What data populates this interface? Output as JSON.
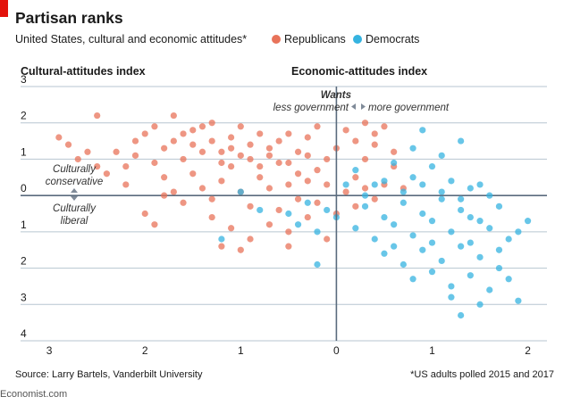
{
  "title": "Partisan ranks",
  "subtitle": "United States, cultural and economic attitudes*",
  "legend": [
    {
      "name": "Republicans",
      "color": "#e8735a"
    },
    {
      "name": "Democrats",
      "color": "#35b3e0"
    }
  ],
  "source": "Source: Larry Bartels, Vanderbilt University",
  "footnote": "*US adults polled 2015 and 2017",
  "brand": "Economist.com",
  "annotations": {
    "wants": "Wants",
    "less_gov": "less government",
    "more_gov": "more government",
    "cult_cons_1": "Culturally",
    "cult_cons_2": "conservative",
    "cult_lib_1": "Culturally",
    "cult_lib_2": "liberal"
  },
  "chart_data": {
    "type": "scatter",
    "xlabel": "Economic-attitudes index",
    "ylabel": "Cultural-attitudes index",
    "xlim": [
      -3.3,
      2.2
    ],
    "ylim": [
      -4,
      3
    ],
    "x_ticks": [
      -3,
      -2,
      -1,
      0,
      1,
      2
    ],
    "x_tick_labels": [
      "3",
      "2",
      "1",
      "0",
      "1",
      "2"
    ],
    "y_ticks": [
      3,
      2,
      1,
      0,
      -1,
      -2,
      -3,
      -4
    ],
    "y_tick_labels": [
      "3",
      "2",
      "1",
      "0",
      "1",
      "2",
      "3",
      "4"
    ],
    "grid": "horizontal",
    "series": [
      {
        "name": "Republicans",
        "color": "#e8735a",
        "points": [
          [
            -2.5,
            2.2
          ],
          [
            -2.9,
            1.6
          ],
          [
            -2.8,
            1.4
          ],
          [
            -2.7,
            1.0
          ],
          [
            -2.5,
            0.8
          ],
          [
            -2.3,
            1.2
          ],
          [
            -2.2,
            0.3
          ],
          [
            -2.1,
            1.5
          ],
          [
            -2.0,
            1.7
          ],
          [
            -1.9,
            1.9
          ],
          [
            -1.8,
            1.3
          ],
          [
            -1.7,
            2.2
          ],
          [
            -1.6,
            1.7
          ],
          [
            -1.5,
            1.4
          ],
          [
            -1.4,
            1.9
          ],
          [
            -1.3,
            2.0
          ],
          [
            -1.2,
            1.2
          ],
          [
            -1.1,
            1.6
          ],
          [
            -1.0,
            1.9
          ],
          [
            -0.9,
            1.4
          ],
          [
            -0.8,
            1.7
          ],
          [
            -0.7,
            1.1
          ],
          [
            -0.6,
            1.5
          ],
          [
            -0.5,
            0.9
          ],
          [
            -0.4,
            1.2
          ],
          [
            -0.3,
            1.6
          ],
          [
            -0.2,
            0.7
          ],
          [
            -0.1,
            1.0
          ],
          [
            0.0,
            1.3
          ],
          [
            0.1,
            1.8
          ],
          [
            0.2,
            0.5
          ],
          [
            0.3,
            1.0
          ],
          [
            0.4,
            1.4
          ],
          [
            0.5,
            0.3
          ],
          [
            0.6,
            0.8
          ],
          [
            0.7,
            0.2
          ],
          [
            0.3,
            2.0
          ],
          [
            -0.2,
            1.9
          ],
          [
            -1.9,
            0.9
          ],
          [
            -1.8,
            0.5
          ],
          [
            -1.7,
            0.1
          ],
          [
            -1.6,
            -0.2
          ],
          [
            -1.5,
            0.6
          ],
          [
            -1.4,
            0.2
          ],
          [
            -1.3,
            -0.1
          ],
          [
            -1.2,
            0.4
          ],
          [
            -1.1,
            0.8
          ],
          [
            -1.0,
            0.1
          ],
          [
            -0.9,
            -0.3
          ],
          [
            -0.8,
            0.5
          ],
          [
            -0.7,
            0.2
          ],
          [
            -0.6,
            -0.4
          ],
          [
            -0.5,
            0.3
          ],
          [
            -0.4,
            -0.1
          ],
          [
            -0.3,
            0.4
          ],
          [
            -0.2,
            -0.2
          ],
          [
            -0.1,
            0.3
          ],
          [
            0.0,
            -0.5
          ],
          [
            0.1,
            0.1
          ],
          [
            0.2,
            -0.3
          ],
          [
            0.3,
            0.2
          ],
          [
            0.4,
            -0.1
          ],
          [
            -2.0,
            -0.5
          ],
          [
            -1.9,
            -0.8
          ],
          [
            -1.8,
            0.0
          ],
          [
            -1.3,
            -0.6
          ],
          [
            -1.1,
            -0.9
          ],
          [
            -0.9,
            -1.2
          ],
          [
            -0.7,
            -0.8
          ],
          [
            -0.5,
            -1.0
          ],
          [
            -0.3,
            -0.6
          ],
          [
            -0.1,
            -1.2
          ],
          [
            -1.2,
            -1.4
          ],
          [
            -1.0,
            -1.5
          ],
          [
            -0.5,
            -1.4
          ],
          [
            -1.6,
            1.0
          ],
          [
            -1.4,
            1.2
          ],
          [
            -1.2,
            0.9
          ],
          [
            -1.0,
            1.1
          ],
          [
            -0.8,
            0.8
          ],
          [
            -0.6,
            0.9
          ],
          [
            -0.4,
            0.6
          ],
          [
            -2.2,
            0.8
          ],
          [
            -2.4,
            0.6
          ],
          [
            -2.6,
            1.2
          ],
          [
            -2.1,
            1.1
          ],
          [
            -1.7,
            1.5
          ],
          [
            -1.5,
            1.8
          ],
          [
            -1.3,
            1.5
          ],
          [
            -1.1,
            1.3
          ],
          [
            -0.9,
            1.0
          ],
          [
            -0.7,
            1.3
          ],
          [
            -0.5,
            1.7
          ],
          [
            -0.3,
            1.1
          ],
          [
            0.2,
            1.5
          ],
          [
            0.4,
            1.7
          ],
          [
            0.6,
            1.2
          ],
          [
            0.5,
            1.9
          ]
        ]
      },
      {
        "name": "Democrats",
        "color": "#35b3e0",
        "points": [
          [
            0.2,
            0.7
          ],
          [
            0.4,
            0.3
          ],
          [
            0.6,
            0.9
          ],
          [
            0.8,
            0.5
          ],
          [
            1.0,
            0.8
          ],
          [
            1.2,
            0.4
          ],
          [
            1.4,
            0.2
          ],
          [
            1.6,
            0.0
          ],
          [
            0.9,
            1.8
          ],
          [
            1.3,
            1.5
          ],
          [
            0.3,
            -0.3
          ],
          [
            0.5,
            -0.6
          ],
          [
            0.7,
            -0.2
          ],
          [
            0.9,
            -0.5
          ],
          [
            1.1,
            -0.1
          ],
          [
            1.3,
            -0.4
          ],
          [
            1.5,
            -0.7
          ],
          [
            1.7,
            -0.3
          ],
          [
            0.2,
            -0.9
          ],
          [
            0.4,
            -1.2
          ],
          [
            0.6,
            -0.8
          ],
          [
            0.8,
            -1.1
          ],
          [
            1.0,
            -0.7
          ],
          [
            1.2,
            -1.0
          ],
          [
            1.4,
            -1.3
          ],
          [
            1.6,
            -0.9
          ],
          [
            1.8,
            -1.2
          ],
          [
            0.5,
            -1.6
          ],
          [
            0.7,
            -1.9
          ],
          [
            0.9,
            -1.5
          ],
          [
            1.1,
            -1.8
          ],
          [
            1.3,
            -1.4
          ],
          [
            1.5,
            -1.7
          ],
          [
            1.7,
            -2.0
          ],
          [
            0.8,
            -2.3
          ],
          [
            1.0,
            -2.1
          ],
          [
            1.2,
            -2.5
          ],
          [
            1.4,
            -2.2
          ],
          [
            1.6,
            -2.6
          ],
          [
            1.8,
            -2.3
          ],
          [
            1.3,
            -3.3
          ],
          [
            1.5,
            -3.0
          ],
          [
            1.9,
            -2.9
          ],
          [
            1.2,
            -2.8
          ],
          [
            -0.1,
            -0.4
          ],
          [
            -0.3,
            -0.2
          ],
          [
            -0.5,
            -0.5
          ],
          [
            -0.2,
            -1.0
          ],
          [
            -0.4,
            -0.8
          ],
          [
            0.0,
            -0.6
          ],
          [
            -1.2,
            -1.2
          ],
          [
            -0.2,
            -1.9
          ],
          [
            -1.0,
            0.1
          ],
          [
            -0.8,
            -0.4
          ],
          [
            0.1,
            0.3
          ],
          [
            0.3,
            0.0
          ],
          [
            0.5,
            0.4
          ],
          [
            0.7,
            0.1
          ],
          [
            0.9,
            0.3
          ],
          [
            1.1,
            0.1
          ],
          [
            1.3,
            -0.1
          ],
          [
            1.5,
            0.3
          ],
          [
            1.0,
            -1.3
          ],
          [
            0.6,
            -1.4
          ],
          [
            1.4,
            -0.6
          ],
          [
            2.0,
            -0.7
          ],
          [
            1.9,
            -1.0
          ],
          [
            1.7,
            -1.5
          ],
          [
            1.1,
            1.1
          ],
          [
            0.8,
            1.3
          ]
        ]
      }
    ]
  }
}
